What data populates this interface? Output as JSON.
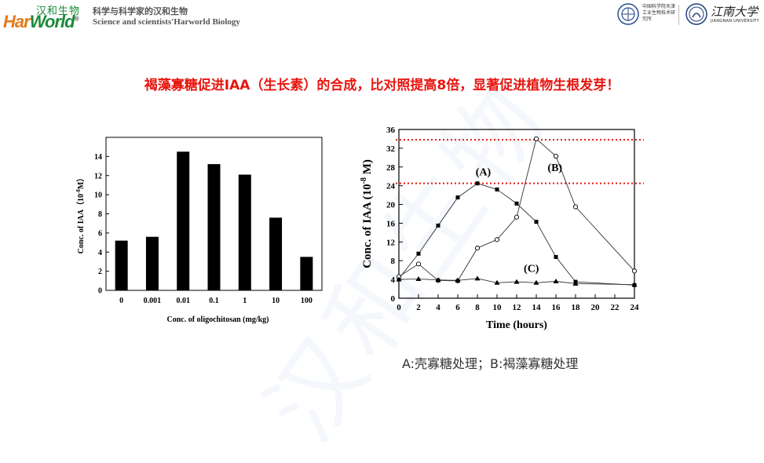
{
  "header": {
    "logo_cn": "汉和生物",
    "logo_en_part1": "Har",
    "logo_en_part2": "World",
    "tagline_cn": "科学与科学家的汉和生物",
    "tagline_en": "Science and scientists'Harworld Biology",
    "inst1_text": "中国科学院天津工业生物技术研究所",
    "inst2_name": "江南大学",
    "inst2_en": "JIANGNAN UNIVERSITY"
  },
  "headline": "褐藻寡糖促进IAA（生长素）的合成，比对照提高8倍，显著促进植物生根发芽！",
  "watermark": "汉和生物",
  "caption": "A:壳寡糖处理；B:褐藻寡糖处理",
  "colors": {
    "headline": "#e8150f",
    "logo_green": "#1c8a3a",
    "logo_orange": "#e27a1a",
    "reference_line": "#e8150f"
  },
  "chart_data": [
    {
      "type": "bar",
      "categories": [
        "0",
        "0.001",
        "0.01",
        "0.1",
        "1",
        "10",
        "100"
      ],
      "values": [
        5.2,
        5.6,
        14.5,
        13.2,
        12.1,
        7.6,
        3.5
      ],
      "xlabel": "Conc. of  oligochitosan (mg/kg)",
      "ylabel": "Conc. of IAA（10",
      "ylabel_sup": "-8",
      "ylabel_end": "M）",
      "ylim": [
        0,
        16
      ],
      "yticks": [
        "0",
        "2",
        "4",
        "6",
        "8",
        "10",
        "12",
        "14"
      ]
    },
    {
      "type": "line",
      "x": [
        0,
        2,
        4,
        6,
        8,
        10,
        12,
        14,
        16,
        18,
        24
      ],
      "series": [
        {
          "name": "(A)",
          "marker": "filled-square",
          "values": [
            4.2,
            9.5,
            15.5,
            21.5,
            24.5,
            23.2,
            20.2,
            16.3,
            8.8,
            3.5,
            2.8
          ]
        },
        {
          "name": "(B)",
          "marker": "open-circle",
          "values": [
            4.6,
            7.3,
            3.8,
            3.7,
            10.7,
            12.5,
            17.3,
            34.0,
            30.3,
            19.5,
            5.8
          ]
        },
        {
          "name": "(C)",
          "marker": "filled-triangle",
          "values": [
            4.0,
            4.1,
            3.9,
            3.8,
            4.2,
            3.3,
            3.5,
            3.3,
            3.6,
            3.1,
            2.9
          ]
        }
      ],
      "xlabel": "Time (hours)",
      "ylabel": "Conc. of IAA (10",
      "ylabel_sup": "-8",
      "ylabel_end": " M)",
      "xlim": [
        0,
        24
      ],
      "ylim": [
        0,
        36
      ],
      "xticks": [
        "0",
        "2",
        "4",
        "6",
        "8",
        "10",
        "12",
        "14",
        "16",
        "18",
        "20",
        "22",
        "24"
      ],
      "yticks": [
        "0",
        "4",
        "8",
        "12",
        "16",
        "20",
        "24",
        "28",
        "32",
        "36"
      ],
      "reference_lines": [
        33.8,
        24.5
      ]
    }
  ]
}
